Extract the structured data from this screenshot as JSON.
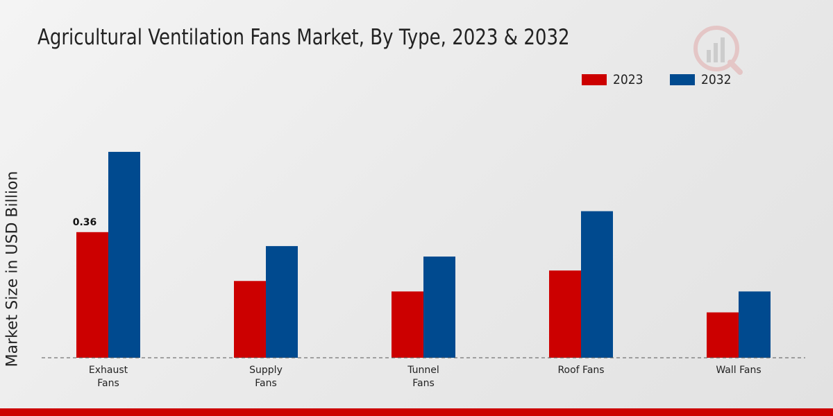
{
  "chart_data": {
    "type": "bar",
    "title": "Agricultural Ventilation Fans Market, By Type, 2023 & 2032",
    "xlabel": "",
    "ylabel": "Market Size in USD Billion",
    "categories": [
      [
        "Exhaust",
        "Fans"
      ],
      [
        "Supply",
        "Fans"
      ],
      [
        "Tunnel",
        "Fans"
      ],
      [
        "Roof Fans"
      ],
      [
        "Wall Fans"
      ]
    ],
    "series": [
      {
        "name": "2023",
        "color": "#cc0000",
        "values": [
          0.36,
          0.22,
          0.19,
          0.25,
          0.13
        ]
      },
      {
        "name": "2032",
        "color": "#004a8f",
        "values": [
          0.59,
          0.32,
          0.29,
          0.42,
          0.19
        ]
      }
    ],
    "data_labels": [
      {
        "series": 0,
        "index": 0,
        "text": "0.36"
      }
    ],
    "ylim": [
      0,
      0.6
    ],
    "grid": false,
    "legend_position": "top-right"
  }
}
